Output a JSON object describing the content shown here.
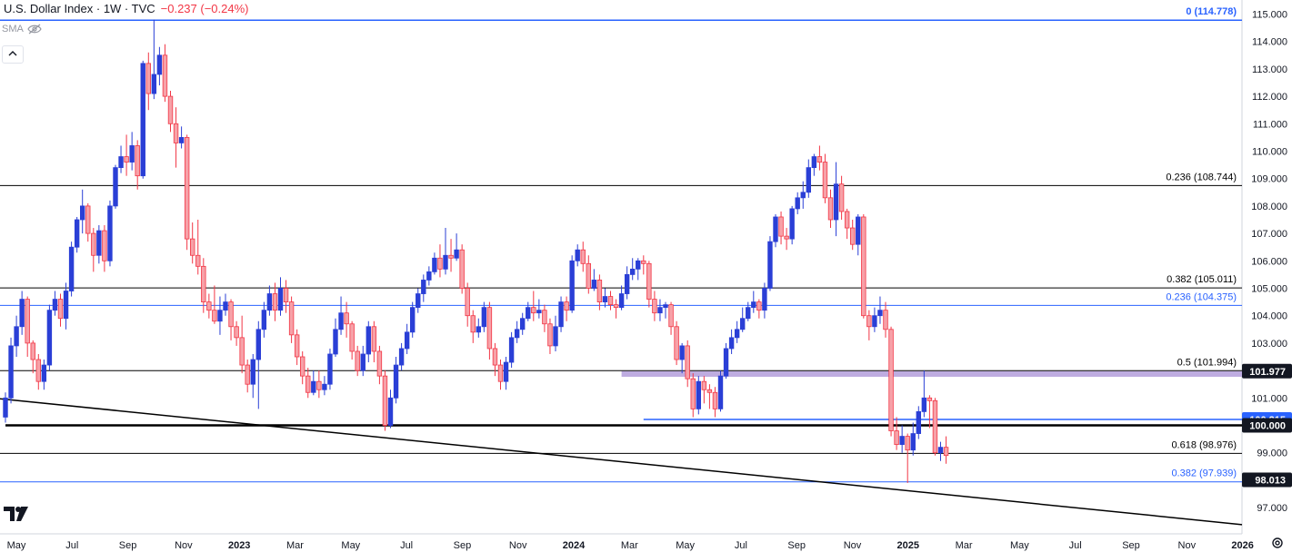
{
  "header": {
    "title": "U.S. Dollar Index · 1W · TVC",
    "change": "−0.237 (−0.24%)",
    "indicator": "SMA"
  },
  "icons": [
    "eye-off-icon",
    "chevron-up-icon",
    "tradingview-logo",
    "settings-icon"
  ],
  "chart_data": {
    "type": "candlestick",
    "title": "U.S. Dollar Index · 1W · TVC",
    "ylim": [
      97.0,
      115.0
    ],
    "y_ticks": [
      "97.000",
      "99.000",
      "101.000",
      "103.000",
      "104.000",
      "105.000",
      "106.000",
      "107.000",
      "108.000",
      "109.000",
      "110.000",
      "111.000",
      "112.000",
      "113.000",
      "114.000",
      "115.000"
    ],
    "x_ticks": [
      "May",
      "Jul",
      "Sep",
      "Nov",
      "2023",
      "Mar",
      "May",
      "Jul",
      "Sep",
      "Nov",
      "2024",
      "Mar",
      "May",
      "Jul",
      "Sep",
      "Nov",
      "2025",
      "Mar",
      "May",
      "Jul",
      "Sep",
      "Nov",
      "2026"
    ],
    "colors": {
      "up": "#2a3fd6",
      "down": "#f23645",
      "blue_level": "#2962ff",
      "zone": "#b39ddb"
    },
    "fib_levels": [
      {
        "label": "0 (114.778)",
        "value": 114.778,
        "color": "#2962ff"
      },
      {
        "label": "0.236 (108.744)",
        "value": 108.744,
        "color": "#000000"
      },
      {
        "label": "0.382 (105.011)",
        "value": 105.011,
        "color": "#000000"
      },
      {
        "label": "0.236 (104.375)",
        "value": 104.375,
        "color": "#2962ff"
      },
      {
        "label": "0.5 (101.994)",
        "value": 101.994,
        "color": "#000000"
      },
      {
        "label": "0.618 (98.976)",
        "value": 98.976,
        "color": "#000000"
      },
      {
        "label": "0.382 (97.939)",
        "value": 97.939,
        "color": "#2962ff"
      }
    ],
    "price_labels": [
      {
        "label": "101.977",
        "value": 101.977
      },
      {
        "label": "100.215",
        "value": 100.215
      },
      {
        "label": "100.000",
        "value": 100.0
      },
      {
        "label": "98.013",
        "value": 98.013
      }
    ],
    "trendline": {
      "from": [
        0,
        100.95
      ],
      "to": [
        182,
        97.25
      ]
    },
    "support_lines": [
      {
        "value": 100.0,
        "from_index": 0,
        "thick": true
      },
      {
        "value": 100.215,
        "from_index": 116,
        "thick": false
      }
    ],
    "zone": {
      "low": 101.77,
      "high": 101.977,
      "from_index": 112
    },
    "candles": [
      [
        100.3,
        101.0,
        101.2,
        100.1
      ],
      [
        101.0,
        102.9,
        103.2,
        100.8
      ],
      [
        102.9,
        103.6,
        104.0,
        102.5
      ],
      [
        103.6,
        104.6,
        104.9,
        103.3
      ],
      [
        104.6,
        103.0,
        104.7,
        102.5
      ],
      [
        103.0,
        102.4,
        103.1,
        101.9
      ],
      [
        102.4,
        101.6,
        102.6,
        101.3
      ],
      [
        101.6,
        102.2,
        102.4,
        101.3
      ],
      [
        102.2,
        104.2,
        104.4,
        102.0
      ],
      [
        104.2,
        104.6,
        104.9,
        104.0
      ],
      [
        104.6,
        103.9,
        104.8,
        103.6
      ],
      [
        103.9,
        104.9,
        105.2,
        103.5
      ],
      [
        104.9,
        106.5,
        106.7,
        104.7
      ],
      [
        106.5,
        107.5,
        107.6,
        106.3
      ],
      [
        107.5,
        108.0,
        108.6,
        107.0
      ],
      [
        108.0,
        107.0,
        108.1,
        106.7
      ],
      [
        107.0,
        106.2,
        107.2,
        105.6
      ],
      [
        106.2,
        107.1,
        107.3,
        105.9
      ],
      [
        107.1,
        106.0,
        107.3,
        105.6
      ],
      [
        106.0,
        108.0,
        108.2,
        105.8
      ],
      [
        108.0,
        109.4,
        109.5,
        107.9
      ],
      [
        109.4,
        109.8,
        110.2,
        109.2
      ],
      [
        109.8,
        109.6,
        110.6,
        109.1
      ],
      [
        109.6,
        110.2,
        110.7,
        109.3
      ],
      [
        110.2,
        109.1,
        110.4,
        108.6
      ],
      [
        109.1,
        113.2,
        113.3,
        109.0
      ],
      [
        113.2,
        112.1,
        113.6,
        111.5
      ],
      [
        112.1,
        112.8,
        114.8,
        111.9
      ],
      [
        112.8,
        113.5,
        113.8,
        112.4
      ],
      [
        113.5,
        112.0,
        113.9,
        111.8
      ],
      [
        112.0,
        111.0,
        112.2,
        110.7
      ],
      [
        111.0,
        110.3,
        111.6,
        109.4
      ],
      [
        110.3,
        110.5,
        110.9,
        110.1
      ],
      [
        110.5,
        106.8,
        110.6,
        106.4
      ],
      [
        106.8,
        106.2,
        107.4,
        105.9
      ],
      [
        106.2,
        105.8,
        107.5,
        105.5
      ],
      [
        105.8,
        104.5,
        106.1,
        104.1
      ],
      [
        104.5,
        104.2,
        104.8,
        103.9
      ],
      [
        104.2,
        103.8,
        105.1,
        103.7
      ],
      [
        103.8,
        104.2,
        104.7,
        103.3
      ],
      [
        104.2,
        104.5,
        104.8,
        104.0
      ],
      [
        104.5,
        103.6,
        104.6,
        103.1
      ],
      [
        103.6,
        103.2,
        103.8,
        102.9
      ],
      [
        103.2,
        102.2,
        104.0,
        101.9
      ],
      [
        102.2,
        101.5,
        102.4,
        101.2
      ],
      [
        101.5,
        102.4,
        102.6,
        101.0
      ],
      [
        102.4,
        103.5,
        103.8,
        100.6
      ],
      [
        103.5,
        104.2,
        104.5,
        103.2
      ],
      [
        104.2,
        104.8,
        105.1,
        104.0
      ],
      [
        104.8,
        104.2,
        105.2,
        103.8
      ],
      [
        104.2,
        105.0,
        105.4,
        104.0
      ],
      [
        105.0,
        104.5,
        105.3,
        104.1
      ],
      [
        104.5,
        103.3,
        104.7,
        103.0
      ],
      [
        103.3,
        102.5,
        103.5,
        102.2
      ],
      [
        102.5,
        101.8,
        102.7,
        101.5
      ],
      [
        101.8,
        101.2,
        102.1,
        101.0
      ],
      [
        101.2,
        101.6,
        102.0,
        101.1
      ],
      [
        101.6,
        101.3,
        102.0,
        101.0
      ],
      [
        101.3,
        101.5,
        101.8,
        101.1
      ],
      [
        101.5,
        102.6,
        102.8,
        101.3
      ],
      [
        102.6,
        103.5,
        103.9,
        102.5
      ],
      [
        103.5,
        104.1,
        104.7,
        103.3
      ],
      [
        104.1,
        103.7,
        104.5,
        103.2
      ],
      [
        103.7,
        102.7,
        103.8,
        102.4
      ],
      [
        102.7,
        102.0,
        102.9,
        101.8
      ],
      [
        102.0,
        102.6,
        102.9,
        101.8
      ],
      [
        102.6,
        103.6,
        103.8,
        102.3
      ],
      [
        103.6,
        102.7,
        103.8,
        102.3
      ],
      [
        102.7,
        101.8,
        102.9,
        101.5
      ],
      [
        101.8,
        100.0,
        102.0,
        99.8
      ],
      [
        100.0,
        101.0,
        101.3,
        99.9
      ],
      [
        101.0,
        102.2,
        102.5,
        100.8
      ],
      [
        102.2,
        102.8,
        103.0,
        102.0
      ],
      [
        102.8,
        103.4,
        103.7,
        102.6
      ],
      [
        103.4,
        104.3,
        104.5,
        103.2
      ],
      [
        104.3,
        104.8,
        105.0,
        104.1
      ],
      [
        104.8,
        105.3,
        105.5,
        104.5
      ],
      [
        105.3,
        105.6,
        105.8,
        105.1
      ],
      [
        105.6,
        106.1,
        106.3,
        105.5
      ],
      [
        106.1,
        105.7,
        106.6,
        105.4
      ],
      [
        105.7,
        106.2,
        107.2,
        105.5
      ],
      [
        106.2,
        106.1,
        106.8,
        105.6
      ],
      [
        106.1,
        106.4,
        107.0,
        106.0
      ],
      [
        106.4,
        105.0,
        106.6,
        104.8
      ],
      [
        105.0,
        104.0,
        105.2,
        103.6
      ],
      [
        104.0,
        103.4,
        104.2,
        103.0
      ],
      [
        103.4,
        103.6,
        103.9,
        103.2
      ],
      [
        103.6,
        104.3,
        104.5,
        103.4
      ],
      [
        104.3,
        102.8,
        104.5,
        102.4
      ],
      [
        102.8,
        102.2,
        103.0,
        101.8
      ],
      [
        102.2,
        101.6,
        102.4,
        101.3
      ],
      [
        101.6,
        102.3,
        102.5,
        101.3
      ],
      [
        102.3,
        103.2,
        103.4,
        102.1
      ],
      [
        103.2,
        103.5,
        103.8,
        103.0
      ],
      [
        103.5,
        103.9,
        104.1,
        103.3
      ],
      [
        103.9,
        104.3,
        104.5,
        103.8
      ],
      [
        104.3,
        104.1,
        104.9,
        103.8
      ],
      [
        104.1,
        104.2,
        104.6,
        103.9
      ],
      [
        104.2,
        103.7,
        104.4,
        103.4
      ],
      [
        103.7,
        102.9,
        103.9,
        102.6
      ],
      [
        102.9,
        103.6,
        104.0,
        102.7
      ],
      [
        103.6,
        104.5,
        104.7,
        103.4
      ],
      [
        104.5,
        104.2,
        104.7,
        103.8
      ],
      [
        104.2,
        106.0,
        106.2,
        104.1
      ],
      [
        106.0,
        106.4,
        106.6,
        105.8
      ],
      [
        106.4,
        105.9,
        106.7,
        105.6
      ],
      [
        105.9,
        105.0,
        106.2,
        104.8
      ],
      [
        105.0,
        105.3,
        105.7,
        104.9
      ],
      [
        105.3,
        104.5,
        105.5,
        104.2
      ],
      [
        104.5,
        104.7,
        105.0,
        104.3
      ],
      [
        104.7,
        104.4,
        104.9,
        104.2
      ],
      [
        104.4,
        104.3,
        104.6,
        103.9
      ],
      [
        104.3,
        104.8,
        105.1,
        104.2
      ],
      [
        104.8,
        105.5,
        105.8,
        104.6
      ],
      [
        105.5,
        105.7,
        106.1,
        105.3
      ],
      [
        105.7,
        106.0,
        106.1,
        105.3
      ],
      [
        106.0,
        105.9,
        106.2,
        105.5
      ],
      [
        105.9,
        104.6,
        106.0,
        104.3
      ],
      [
        104.6,
        104.1,
        104.9,
        103.8
      ],
      [
        104.1,
        104.3,
        104.6,
        103.8
      ],
      [
        104.3,
        104.4,
        104.5,
        103.9
      ],
      [
        104.4,
        103.6,
        104.5,
        103.3
      ],
      [
        103.6,
        102.4,
        103.8,
        102.2
      ],
      [
        102.4,
        102.9,
        103.0,
        101.9
      ],
      [
        102.9,
        101.7,
        103.1,
        101.4
      ],
      [
        101.7,
        100.6,
        101.9,
        100.3
      ],
      [
        100.6,
        101.6,
        101.8,
        100.4
      ],
      [
        101.6,
        101.3,
        101.8,
        100.8
      ],
      [
        101.3,
        101.2,
        101.5,
        100.6
      ],
      [
        101.2,
        100.6,
        101.4,
        100.3
      ],
      [
        100.6,
        101.8,
        102.0,
        100.5
      ],
      [
        101.8,
        102.8,
        103.0,
        101.7
      ],
      [
        102.8,
        103.2,
        103.5,
        102.6
      ],
      [
        103.2,
        103.5,
        103.8,
        103.0
      ],
      [
        103.5,
        103.9,
        104.3,
        103.4
      ],
      [
        103.9,
        104.3,
        104.5,
        103.8
      ],
      [
        104.3,
        104.5,
        104.9,
        104.1
      ],
      [
        104.5,
        104.2,
        104.6,
        103.9
      ],
      [
        104.2,
        105.0,
        105.2,
        103.9
      ],
      [
        105.0,
        106.7,
        106.9,
        104.9
      ],
      [
        106.7,
        107.6,
        107.7,
        106.5
      ],
      [
        107.6,
        106.9,
        107.8,
        106.6
      ],
      [
        106.9,
        106.8,
        107.2,
        106.4
      ],
      [
        106.8,
        107.9,
        108.0,
        106.6
      ],
      [
        107.9,
        108.3,
        108.5,
        107.7
      ],
      [
        108.3,
        108.5,
        108.9,
        107.9
      ],
      [
        108.5,
        109.4,
        109.7,
        108.3
      ],
      [
        109.4,
        109.8,
        109.9,
        109.1
      ],
      [
        109.8,
        109.6,
        110.2,
        109.3
      ],
      [
        109.6,
        108.3,
        109.9,
        108.1
      ],
      [
        108.3,
        107.5,
        108.6,
        107.2
      ],
      [
        107.5,
        108.8,
        109.6,
        106.9
      ],
      [
        108.8,
        107.8,
        109.1,
        107.5
      ],
      [
        107.8,
        107.2,
        107.9,
        106.8
      ],
      [
        107.2,
        106.6,
        107.5,
        106.4
      ],
      [
        106.6,
        107.6,
        107.7,
        106.2
      ],
      [
        107.6,
        104.0,
        107.7,
        103.9
      ],
      [
        104.0,
        103.6,
        104.2,
        103.1
      ],
      [
        103.6,
        104.0,
        104.3,
        103.4
      ],
      [
        104.0,
        104.2,
        104.7,
        103.7
      ],
      [
        104.2,
        103.5,
        104.5,
        103.2
      ],
      [
        103.5,
        99.8,
        103.6,
        99.6
      ],
      [
        99.8,
        99.3,
        100.3,
        99.1
      ],
      [
        99.3,
        99.6,
        100.0,
        99.0
      ],
      [
        99.6,
        99.1,
        99.7,
        97.9
      ],
      [
        99.1,
        99.7,
        100.1,
        98.9
      ],
      [
        99.7,
        100.5,
        100.7,
        99.5
      ],
      [
        100.5,
        101.0,
        102.0,
        100.3
      ],
      [
        101.0,
        100.9,
        101.1,
        99.9
      ],
      [
        100.9,
        99.0,
        101.0,
        98.9
      ],
      [
        99.0,
        99.2,
        99.4,
        98.7
      ],
      [
        99.2,
        98.9,
        99.6,
        98.6
      ]
    ]
  }
}
